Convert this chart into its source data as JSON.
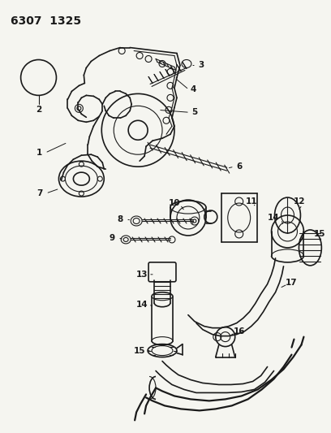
{
  "title": "6307  1325",
  "bg_color": "#f5f5f0",
  "line_color": "#1a1a1a",
  "title_fontsize": 10,
  "label_fontsize": 7.5,
  "fig_w": 4.08,
  "fig_h": 5.33,
  "dpi": 100
}
